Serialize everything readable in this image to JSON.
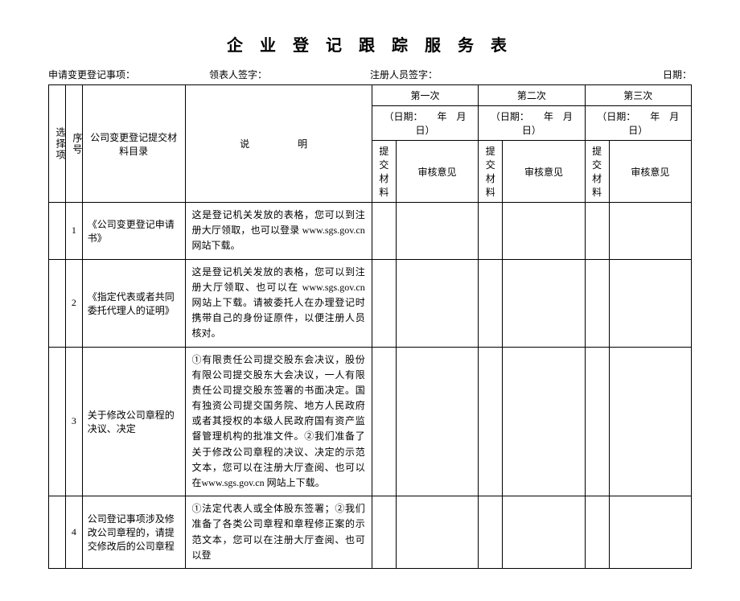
{
  "title": "企 业 登 记 跟 踪 服 务 表",
  "header": {
    "apply_label": "申请变更登记事项：",
    "collector_label": "领表人签字：",
    "registrar_label": "注册人员签字：",
    "date_label": "日期："
  },
  "table_headers": {
    "select": "选择项",
    "seq": "序号",
    "material": "公司变更登记提交材料目录",
    "desc": "说　　明",
    "round1": "第一次",
    "round2": "第二次",
    "round3": "第三次",
    "date_tpl": "（日期：　　年　月　日）",
    "submit": "提交材料",
    "review": "审核意见"
  },
  "rows": [
    {
      "num": "1",
      "material": "《公司变更登记申请书》",
      "desc": "这是登记机关发放的表格，您可以到注册大厅领取，也可以登录 www.sgs.gov.cn网站下载。"
    },
    {
      "num": "2",
      "material": "《指定代表或者共同委托代理人的证明》",
      "desc": "这是登记机关发放的表格，您可以到注册大厅领取、也可以在 www.sgs.gov.cn 网站上下载。请被委托人在办理登记时携带自己的身份证原件，以便注册人员核对。"
    },
    {
      "num": "3",
      "material": "关于修改公司章程的决议、决定",
      "desc": "①有限责任公司提交股东会决议，股份有限公司提交股东大会决议，一人有限责任公司提交股东签署的书面决定。国有独资公司提交国务院、地方人民政府或者其授权的本级人民政府国有资产监督管理机构的批准文件。②我们准备了关于修改公司章程的决议、决定的示范文本，您可以在注册大厅查阅、也可以在www.sgs.gov.cn 网站上下载。"
    },
    {
      "num": "4",
      "material": "公司登记事项涉及修改公司章程的，请提交修改后的公司章程",
      "desc": "①法定代表人或全体股东签署；②我们准备了各类公司章程和章程修正案的示范文本，您可以在注册大厅查阅、也可以登"
    }
  ]
}
